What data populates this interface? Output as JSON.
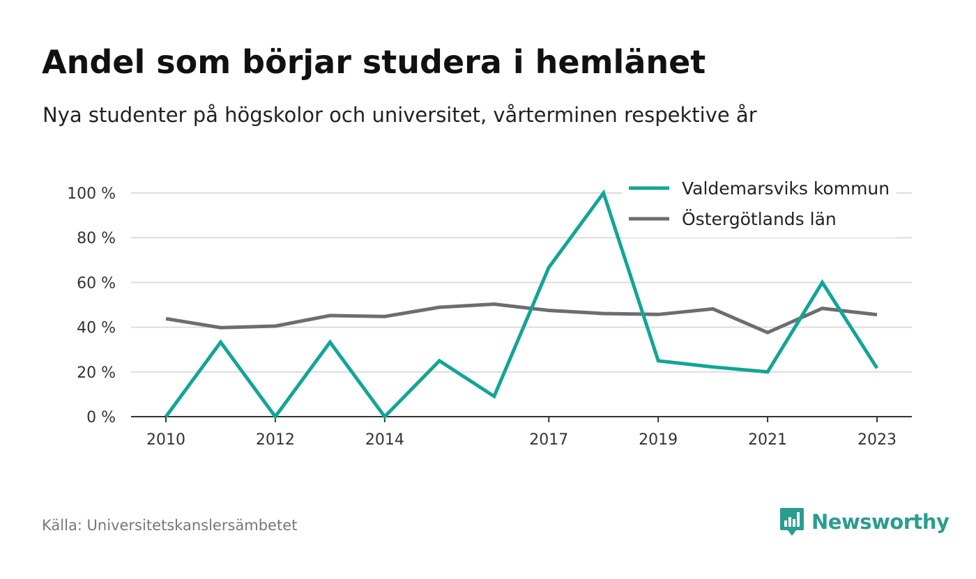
{
  "title": "Andel som börjar studera i hemlänet",
  "subtitle": "Nya studenter på högskolor och universitet, vårterminen respektive år",
  "source": "Källa: Universitetskanslersämbetet",
  "brand": {
    "name": "Newsworthy",
    "icon": "newsworthy-logo-icon",
    "color": "#2a9d8f"
  },
  "chart_data": {
    "type": "line",
    "x": [
      2010,
      2011,
      2012,
      2013,
      2014,
      2015,
      2016,
      2017,
      2018,
      2019,
      2020,
      2021,
      2022,
      2023
    ],
    "xticks": [
      2010,
      2012,
      2014,
      2017,
      2019,
      2021,
      2023
    ],
    "xtick_labels": [
      "2010",
      "2012",
      "2014",
      "2017",
      "2019",
      "2021",
      "2023"
    ],
    "yticks": [
      0,
      20,
      40,
      60,
      80,
      100
    ],
    "ytick_labels": [
      "0 %",
      "20 %",
      "40 %",
      "60 %",
      "80 %",
      "100 %"
    ],
    "ylim": [
      0,
      100
    ],
    "grid": true,
    "legend_position": "top-right",
    "series": [
      {
        "name": "Valdemarsviks kommun",
        "color": "#12a596",
        "values": [
          0,
          33.3,
          0,
          33.3,
          0,
          25,
          9.1,
          66.7,
          100,
          25,
          22.2,
          20,
          60,
          21.7
        ]
      },
      {
        "name": "Östergötlands län",
        "color": "#6d6c73",
        "values": [
          43.8,
          39.8,
          40.5,
          45.2,
          44.8,
          48.9,
          50.3,
          47.5,
          46.1,
          45.7,
          48.2,
          37.6,
          48.4,
          45.6
        ]
      }
    ]
  }
}
